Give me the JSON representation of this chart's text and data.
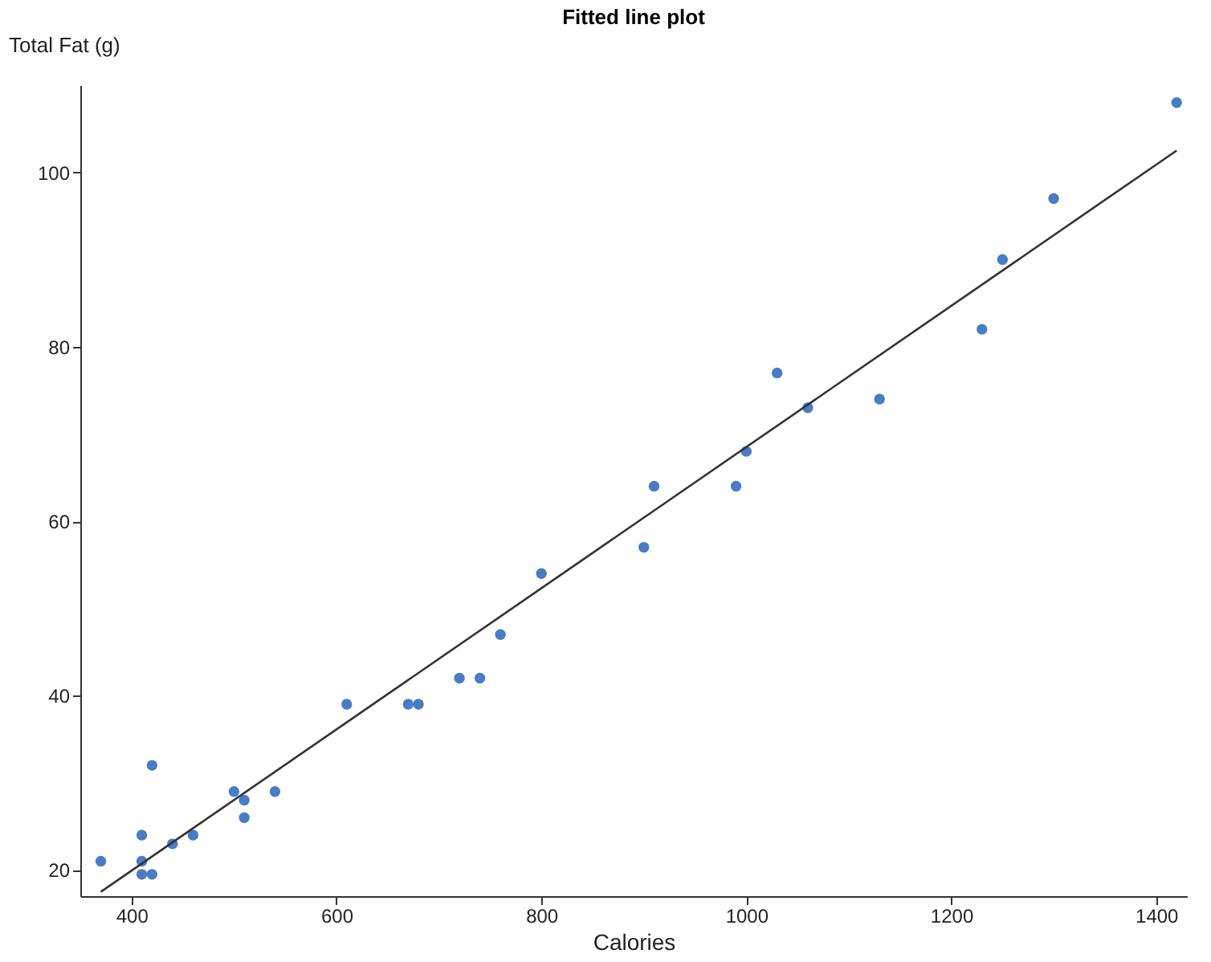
{
  "chart_data": {
    "type": "scatter",
    "title": "Fitted line plot",
    "xlabel": "Calories",
    "ylabel": "Total Fat (g)",
    "xlim": [
      350,
      1430
    ],
    "ylim": [
      17,
      110
    ],
    "xticks": [
      400,
      600,
      800,
      1000,
      1200,
      1400
    ],
    "yticks": [
      20,
      40,
      60,
      80,
      100
    ],
    "grid": false,
    "series": [
      {
        "color": "#4a7cc4",
        "marker": "circle",
        "x": [
          370,
          410,
          410,
          410,
          420,
          420,
          440,
          460,
          500,
          510,
          510,
          540,
          610,
          670,
          680,
          720,
          740,
          760,
          800,
          900,
          910,
          990,
          1000,
          1030,
          1060,
          1130,
          1230,
          1250,
          1300,
          1420
        ],
        "values": [
          21,
          24,
          21,
          19.5,
          19.5,
          32,
          23,
          24,
          29,
          28,
          26,
          29,
          39,
          39,
          39,
          42,
          42,
          47,
          54,
          57,
          64,
          64,
          68,
          77,
          73,
          74,
          82,
          90,
          97,
          108
        ]
      },
      {
        "type": "line",
        "color": "#333333",
        "line_style": "solid",
        "marker": "none",
        "x": [
          370,
          1420
        ],
        "values": [
          17.5,
          102.5
        ]
      }
    ]
  }
}
